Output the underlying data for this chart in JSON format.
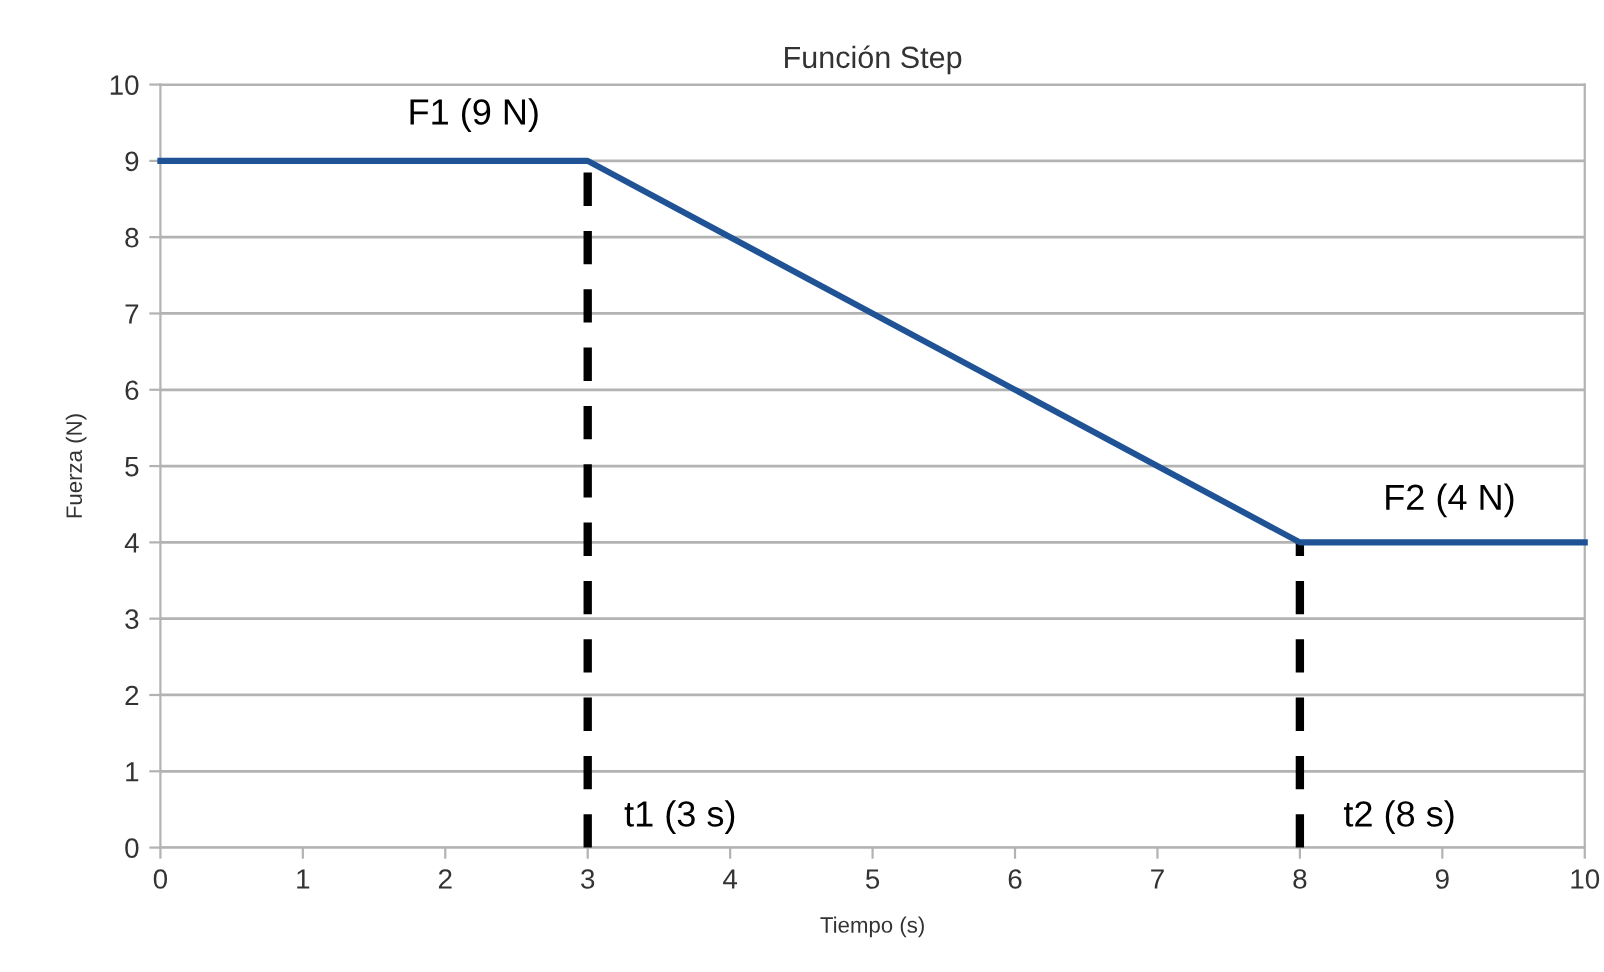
{
  "chart_data": {
    "type": "line",
    "title": "Función Step",
    "xlabel": "Tiempo (s)",
    "ylabel": "Fuerza (N)",
    "xlim": [
      0,
      10
    ],
    "ylim": [
      0,
      10
    ],
    "xticks": [
      0,
      1,
      2,
      3,
      4,
      5,
      6,
      7,
      8,
      9,
      10
    ],
    "yticks": [
      0,
      1,
      2,
      3,
      4,
      5,
      6,
      7,
      8,
      9,
      10
    ],
    "grid": "y",
    "legend": false,
    "marker": "none",
    "series": [
      {
        "color": "#1f5396",
        "x": [
          0,
          3,
          8,
          10
        ],
        "values": [
          9,
          9,
          4,
          4
        ],
        "line_style": "solid"
      },
      {
        "color": "#000000",
        "x": [
          3,
          3
        ],
        "values": [
          0,
          9
        ],
        "line_style": "dashed"
      },
      {
        "color": "#000000",
        "x": [
          8,
          8
        ],
        "values": [
          0,
          4
        ],
        "line_style": "dashed"
      }
    ],
    "annotations": [
      "F1 (9 N)",
      "t1 (3 s)",
      "F2 (4 N)",
      "t2 (8 s)"
    ]
  }
}
